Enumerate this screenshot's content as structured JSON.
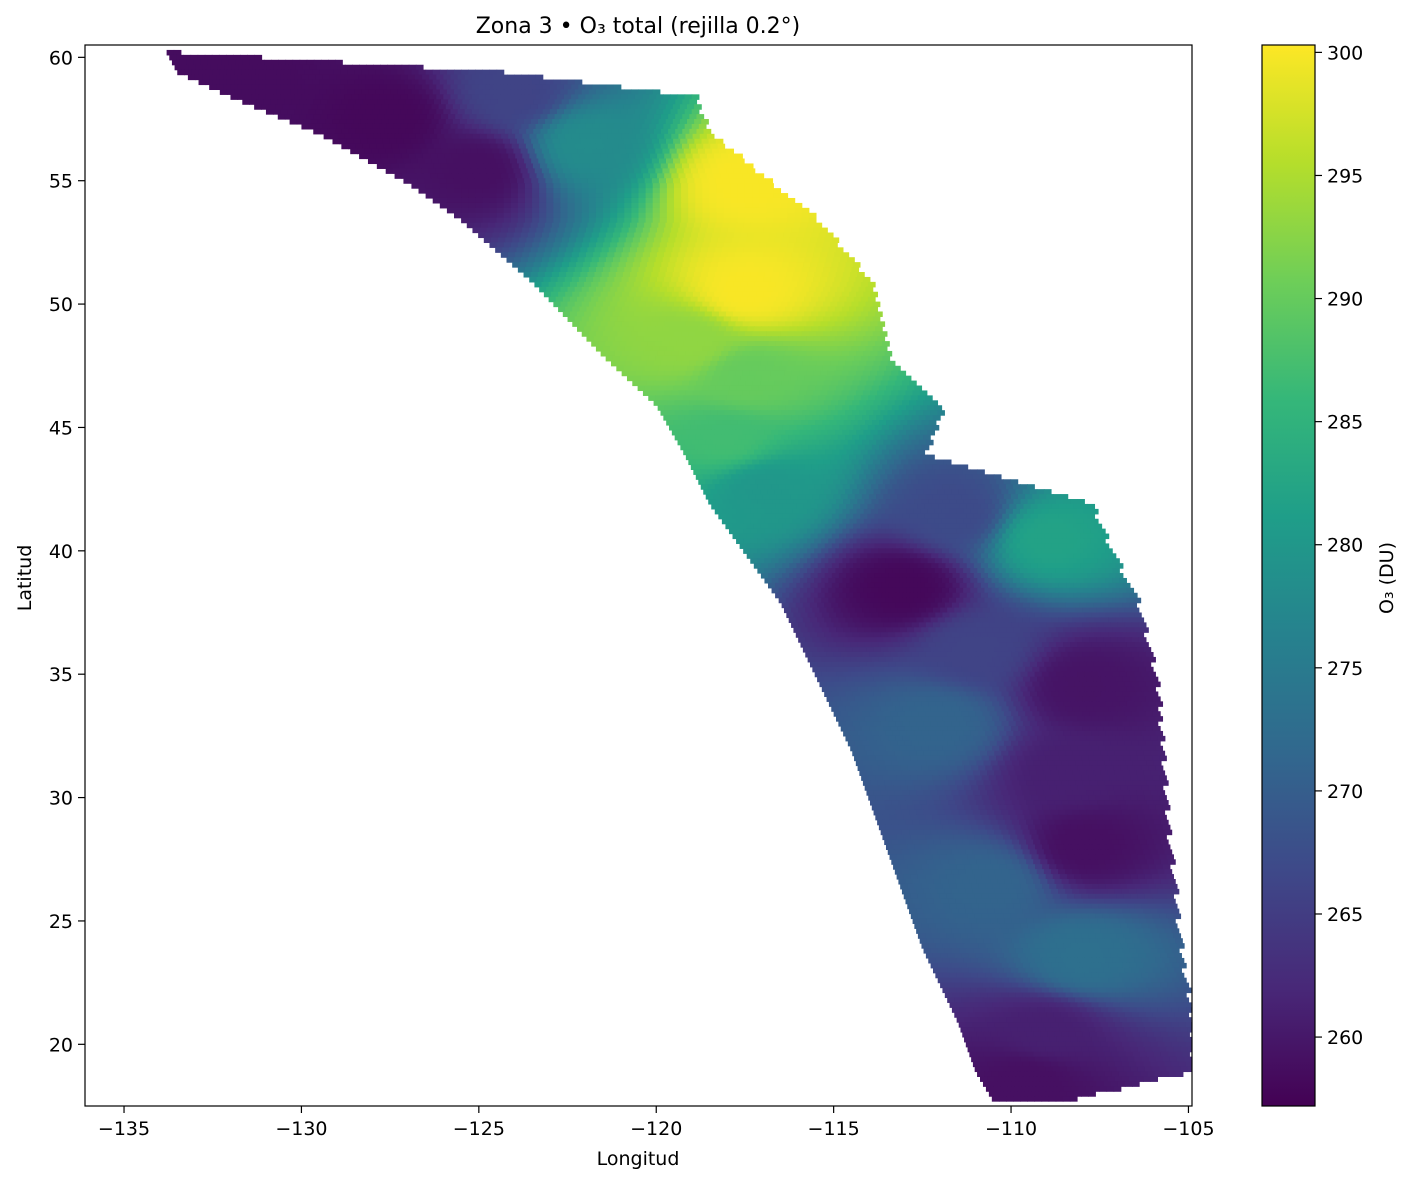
{
  "chart_data": {
    "type": "heatmap",
    "title": "Zona 3 • O₃ total (rejilla 0.2°)",
    "xlabel": "Longitud",
    "ylabel": "Latitud",
    "xlim": [
      -136.1,
      -104.9
    ],
    "ylim": [
      17.5,
      60.5
    ],
    "xticks": [
      -135,
      -130,
      -125,
      -120,
      -115,
      -110,
      -105
    ],
    "xtick_labels": [
      "−135",
      "−130",
      "−125",
      "−120",
      "−115",
      "−110",
      "−105"
    ],
    "yticks": [
      20,
      25,
      30,
      35,
      40,
      45,
      50,
      55,
      60
    ],
    "ytick_labels": [
      "20",
      "25",
      "30",
      "35",
      "40",
      "45",
      "50",
      "55",
      "60"
    ],
    "grid_step_deg": 0.2,
    "colorbar": {
      "label": "O₃ (DU)",
      "colormap": "viridis",
      "range": [
        257.2,
        300.3
      ],
      "ticks": [
        260,
        265,
        270,
        275,
        280,
        285,
        290,
        295,
        300
      ],
      "tick_labels": [
        "260",
        "265",
        "270",
        "275",
        "280",
        "285",
        "290",
        "295",
        "300"
      ],
      "stops": [
        "#440154",
        "#482878",
        "#3e4989",
        "#31688e",
        "#26828e",
        "#1f9e89",
        "#35b779",
        "#6ece58",
        "#b5de2b",
        "#fde725"
      ]
    },
    "swath_edges": [
      {
        "lat": 60.3,
        "lon_west": -133.8,
        "lon_east": -133.5
      },
      {
        "lat": 59.5,
        "lon_west": -133.5,
        "lon_east": -124.5
      },
      {
        "lat": 58.5,
        "lon_west": -132.0,
        "lon_east": -119.0
      },
      {
        "lat": 57.0,
        "lon_west": -129.5,
        "lon_east": -118.5
      },
      {
        "lat": 55.0,
        "lon_west": -127.0,
        "lon_east": -116.8
      },
      {
        "lat": 53.5,
        "lon_west": -125.5,
        "lon_east": -115.5
      },
      {
        "lat": 51.0,
        "lon_west": -123.5,
        "lon_east": -114.0
      },
      {
        "lat": 48.0,
        "lon_west": -121.5,
        "lon_east": -113.5
      },
      {
        "lat": 46.0,
        "lon_west": -120.0,
        "lon_east": -112.0
      },
      {
        "lat": 44.0,
        "lon_west": -119.2,
        "lon_east": -112.5
      },
      {
        "lat": 42.0,
        "lon_west": -118.5,
        "lon_east": -107.8
      },
      {
        "lat": 40.0,
        "lon_west": -117.5,
        "lon_east": -107.2
      },
      {
        "lat": 38.0,
        "lon_west": -116.5,
        "lon_east": -106.5
      },
      {
        "lat": 35.0,
        "lon_west": -115.5,
        "lon_east": -106.0
      },
      {
        "lat": 32.0,
        "lon_west": -114.5,
        "lon_east": -105.8
      },
      {
        "lat": 28.0,
        "lon_west": -113.5,
        "lon_east": -105.6
      },
      {
        "lat": 24.0,
        "lon_west": -112.5,
        "lon_east": -105.3
      },
      {
        "lat": 21.0,
        "lon_west": -111.5,
        "lon_east": -105.0
      },
      {
        "lat": 19.0,
        "lon_west": -111.0,
        "lon_east": -105.0
      },
      {
        "lat": 17.8,
        "lon_west": -110.5,
        "lon_east": -108.5
      }
    ],
    "field_features": [
      {
        "lat": 59.5,
        "lon": -132.0,
        "value": 258.5
      },
      {
        "lat": 57.5,
        "lon": -127.5,
        "value": 258.0
      },
      {
        "lat": 55.5,
        "lon": -125.0,
        "value": 259.0
      },
      {
        "lat": 58.5,
        "lon": -124.0,
        "value": 266.0
      },
      {
        "lat": 56.5,
        "lon": -122.0,
        "value": 278.0
      },
      {
        "lat": 55.0,
        "lon": -117.5,
        "value": 300.0
      },
      {
        "lat": 50.5,
        "lon": -117.5,
        "value": 300.0
      },
      {
        "lat": 48.5,
        "lon": -119.0,
        "value": 293.0
      },
      {
        "lat": 47.0,
        "lon": -117.5,
        "value": 290.0
      },
      {
        "lat": 44.5,
        "lon": -118.0,
        "value": 287.0
      },
      {
        "lat": 42.5,
        "lon": -117.0,
        "value": 280.0
      },
      {
        "lat": 41.5,
        "lon": -111.5,
        "value": 267.0
      },
      {
        "lat": 40.5,
        "lon": -109.0,
        "value": 282.0
      },
      {
        "lat": 38.5,
        "lon": -113.0,
        "value": 258.0
      },
      {
        "lat": 36.0,
        "lon": -111.0,
        "value": 266.0
      },
      {
        "lat": 34.5,
        "lon": -108.0,
        "value": 259.5
      },
      {
        "lat": 33.0,
        "lon": -112.0,
        "value": 271.0
      },
      {
        "lat": 31.0,
        "lon": -108.5,
        "value": 261.0
      },
      {
        "lat": 28.0,
        "lon": -108.0,
        "value": 259.0
      },
      {
        "lat": 26.5,
        "lon": -110.5,
        "value": 271.0
      },
      {
        "lat": 23.5,
        "lon": -108.0,
        "value": 273.0
      },
      {
        "lat": 20.5,
        "lon": -109.0,
        "value": 261.0
      },
      {
        "lat": 18.5,
        "lon": -109.5,
        "value": 259.0
      }
    ]
  }
}
